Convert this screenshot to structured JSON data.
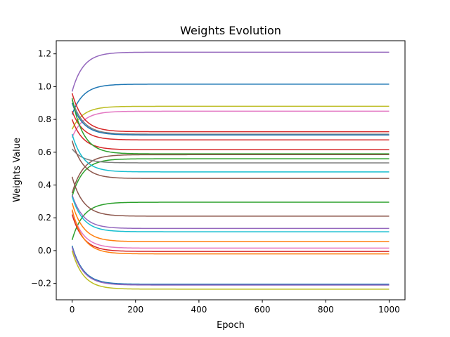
{
  "chart_data": {
    "type": "line",
    "title": "Weights Evolution",
    "xlabel": "Epoch",
    "ylabel": "Weights Value",
    "xlim": [
      -50,
      1050
    ],
    "ylim": [
      -0.3,
      1.28
    ],
    "xticks": [
      0,
      200,
      400,
      600,
      800,
      1000
    ],
    "xtick_labels": [
      "0",
      "200",
      "400",
      "600",
      "800",
      "1000"
    ],
    "yticks": [
      -0.2,
      0.0,
      0.2,
      0.4,
      0.6,
      0.8,
      1.0,
      1.2
    ],
    "ytick_labels": [
      "−0.2",
      "0.0",
      "0.2",
      "0.4",
      "0.6",
      "0.8",
      "1.0",
      "1.2"
    ],
    "grid": false,
    "legend": "none",
    "x_max_epoch": 1000,
    "decay_constant_epochs": 35,
    "series": [
      {
        "start": 0.97,
        "end": 1.21,
        "color": "#9467bd"
      },
      {
        "start": 0.83,
        "end": 1.015,
        "color": "#1f77b4"
      },
      {
        "start": 0.74,
        "end": 0.88,
        "color": "#bcbd22"
      },
      {
        "start": 0.69,
        "end": 0.85,
        "color": "#e377c2"
      },
      {
        "start": 0.96,
        "end": 0.725,
        "color": "#d62728"
      },
      {
        "start": 0.92,
        "end": 0.71,
        "color": "#7f7f7f"
      },
      {
        "start": 0.9,
        "end": 0.705,
        "color": "#1f77b4"
      },
      {
        "start": 0.85,
        "end": 0.675,
        "color": "#d62728"
      },
      {
        "start": 0.8,
        "end": 0.615,
        "color": "#d62728"
      },
      {
        "start": 0.93,
        "end": 0.59,
        "color": "#2ca02c"
      },
      {
        "start": 0.35,
        "end": 0.585,
        "color": "#8c564b"
      },
      {
        "start": 0.33,
        "end": 0.56,
        "color": "#2ca02c"
      },
      {
        "start": 0.62,
        "end": 0.535,
        "color": "#7f7f7f"
      },
      {
        "start": 0.71,
        "end": 0.48,
        "color": "#17becf"
      },
      {
        "start": 0.67,
        "end": 0.44,
        "color": "#8c564b"
      },
      {
        "start": 0.065,
        "end": 0.295,
        "color": "#2ca02c"
      },
      {
        "start": 0.45,
        "end": 0.21,
        "color": "#8c564b"
      },
      {
        "start": 0.34,
        "end": 0.135,
        "color": "#9467bd"
      },
      {
        "start": 0.33,
        "end": 0.115,
        "color": "#17becf"
      },
      {
        "start": 0.29,
        "end": 0.055,
        "color": "#ff7f0e"
      },
      {
        "start": 0.24,
        "end": 0.015,
        "color": "#e377c2"
      },
      {
        "start": 0.22,
        "end": -0.005,
        "color": "#d62728"
      },
      {
        "start": 0.25,
        "end": -0.02,
        "color": "#ff7f0e"
      },
      {
        "start": 0.03,
        "end": -0.205,
        "color": "#1f77b4"
      },
      {
        "start": 0.02,
        "end": -0.21,
        "color": "#9467bd"
      },
      {
        "start": 0.0,
        "end": -0.235,
        "color": "#bcbd22"
      }
    ]
  }
}
